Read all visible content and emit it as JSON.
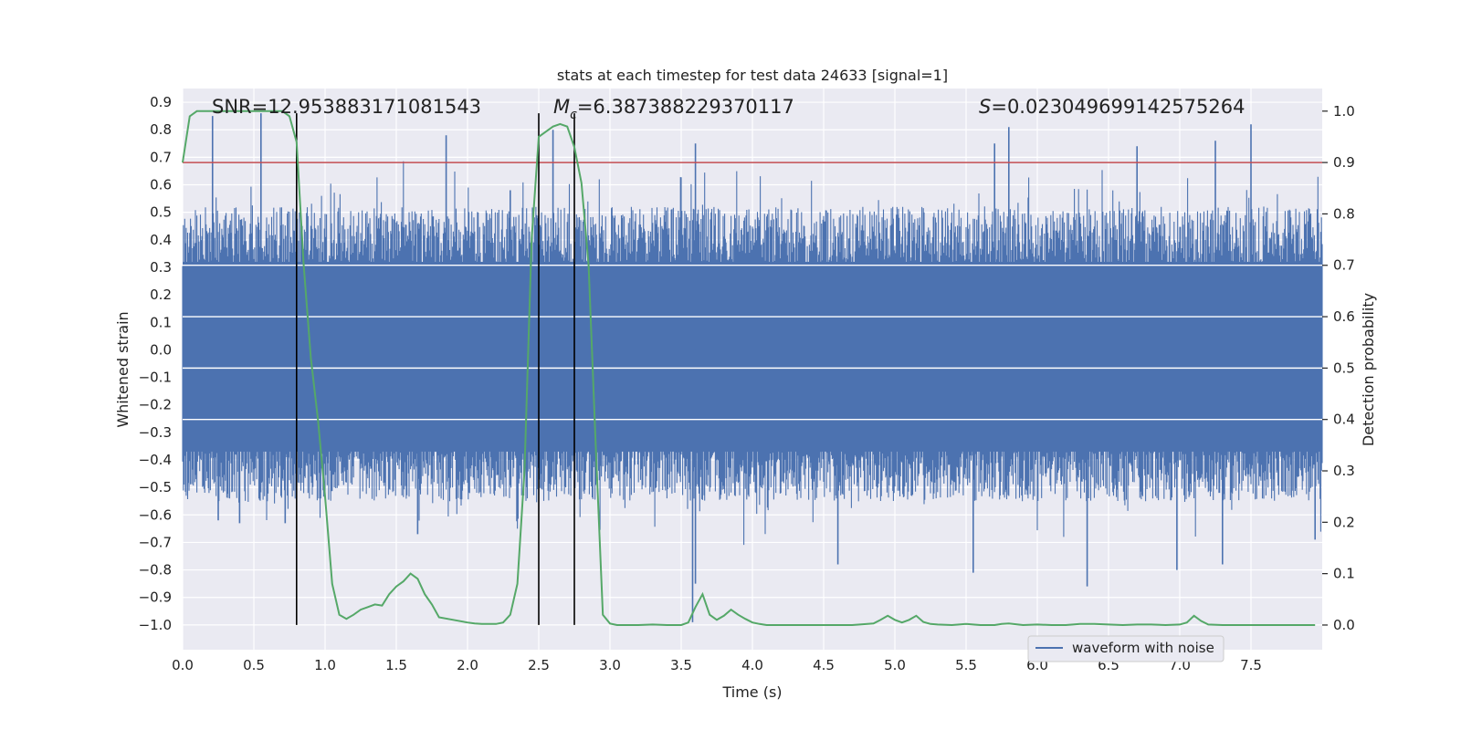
{
  "chart_data": {
    "type": "line",
    "title": "stats at each timestep for test data 24633 [signal=1]",
    "xlabel": "Time (s)",
    "ylabel_left": "Whitened strain",
    "ylabel_right": "Detection probability",
    "xlim": [
      0,
      8
    ],
    "ylim_left": [
      -1.09,
      0.95
    ],
    "ylim_right": [
      -0.048,
      1.044
    ],
    "x_ticks": [
      "0.0",
      "0.5",
      "1.0",
      "1.5",
      "2.0",
      "2.5",
      "3.0",
      "3.5",
      "4.0",
      "4.5",
      "5.0",
      "5.5",
      "6.0",
      "6.5",
      "7.0",
      "7.5"
    ],
    "y_ticks_left": [
      "0.9",
      "0.8",
      "0.7",
      "0.6",
      "0.5",
      "0.4",
      "0.3",
      "0.2",
      "0.1",
      "0.0",
      "-0.1",
      "-0.2",
      "-0.3",
      "-0.4",
      "-0.5",
      "-0.6",
      "-0.7",
      "-0.8",
      "-0.9",
      "-1.0"
    ],
    "y_ticks_right": [
      "1.0",
      "0.9",
      "0.8",
      "0.7",
      "0.6",
      "0.5",
      "0.4",
      "0.3",
      "0.2",
      "0.1",
      "0.0"
    ],
    "annotations": {
      "snr": "SNR=12.953883171081543",
      "mc_symbol": "M",
      "mc_sub": "c",
      "mc_value": "=6.387388229370117",
      "s_symbol": "S",
      "s_value": "=0.023049699142575264"
    },
    "threshold_line": {
      "value": 0.9,
      "axis": "right",
      "color": "#c44e52"
    },
    "vertical_lines": [
      0.8,
      2.5,
      2.75
    ],
    "strain_color": "#4c72b0",
    "probability_color": "#55a868",
    "legend": {
      "label": "waveform with noise",
      "placement": "lower-right"
    },
    "series": [
      {
        "name": "Detection probability",
        "axis": "right",
        "x": [
          0,
          0.05,
          0.1,
          0.15,
          0.2,
          0.3,
          0.4,
          0.5,
          0.6,
          0.7,
          0.75,
          0.8,
          0.85,
          0.9,
          0.95,
          1.0,
          1.05,
          1.1,
          1.15,
          1.2,
          1.25,
          1.3,
          1.35,
          1.4,
          1.45,
          1.5,
          1.55,
          1.6,
          1.65,
          1.7,
          1.75,
          1.8,
          1.9,
          2.0,
          2.05,
          2.1,
          2.15,
          2.2,
          2.25,
          2.3,
          2.35,
          2.4,
          2.45,
          2.5,
          2.55,
          2.6,
          2.65,
          2.7,
          2.75,
          2.8,
          2.85,
          2.9,
          2.95,
          3.0,
          3.05,
          3.1,
          3.2,
          3.3,
          3.4,
          3.5,
          3.55,
          3.6,
          3.65,
          3.7,
          3.75,
          3.8,
          3.85,
          3.9,
          3.95,
          4.0,
          4.05,
          4.1,
          4.2,
          4.3,
          4.5,
          4.7,
          4.85,
          4.9,
          4.95,
          5.0,
          5.05,
          5.1,
          5.15,
          5.2,
          5.25,
          5.3,
          5.4,
          5.5,
          5.6,
          5.7,
          5.75,
          5.8,
          5.9,
          6.0,
          6.1,
          6.2,
          6.3,
          6.35,
          6.4,
          6.5,
          6.6,
          6.7,
          6.8,
          6.9,
          7.0,
          7.05,
          7.1,
          7.15,
          7.2,
          7.3,
          7.4,
          7.5,
          7.6,
          7.7,
          7.8,
          7.95
        ],
        "values": [
          0.9,
          0.99,
          1.0,
          1.0,
          1.0,
          1.0,
          1.0,
          1.0,
          1.0,
          1.0,
          0.99,
          0.94,
          0.7,
          0.52,
          0.4,
          0.25,
          0.08,
          0.02,
          0.012,
          0.02,
          0.03,
          0.035,
          0.04,
          0.038,
          0.06,
          0.075,
          0.085,
          0.1,
          0.09,
          0.06,
          0.04,
          0.015,
          0.01,
          0.005,
          0.003,
          0.002,
          0.002,
          0.002,
          0.005,
          0.02,
          0.08,
          0.3,
          0.75,
          0.95,
          0.96,
          0.97,
          0.975,
          0.97,
          0.93,
          0.86,
          0.7,
          0.35,
          0.02,
          0.003,
          0.0,
          0.0,
          0.0,
          0.001,
          0.0,
          0.0,
          0.005,
          0.035,
          0.06,
          0.02,
          0.01,
          0.018,
          0.03,
          0.02,
          0.012,
          0.005,
          0.002,
          0.0,
          0.0,
          0.0,
          0.0,
          0.0,
          0.003,
          0.01,
          0.018,
          0.01,
          0.005,
          0.01,
          0.018,
          0.006,
          0.002,
          0.001,
          0.0,
          0.002,
          0.0,
          0.0,
          0.002,
          0.003,
          0.0,
          0.001,
          0.0,
          0.0,
          0.002,
          0.002,
          0.002,
          0.001,
          0.0,
          0.001,
          0.001,
          0.0,
          0.001,
          0.005,
          0.018,
          0.008,
          0.001,
          0.0,
          0.0,
          0.0,
          0.0,
          0.0,
          0.0,
          0.0
        ]
      },
      {
        "name": "waveform with noise",
        "axis": "left",
        "description_note": "dense noise trace",
        "envelope_top": 0.3,
        "envelope_bottom": -0.35,
        "peaks_top": [
          [
            0.05,
            0.35
          ],
          [
            0.21,
            0.85
          ],
          [
            0.55,
            0.86
          ],
          [
            1.85,
            0.78
          ],
          [
            2.3,
            0.58
          ],
          [
            2.6,
            0.8
          ],
          [
            3.6,
            0.75
          ],
          [
            5.7,
            0.75
          ],
          [
            5.8,
            0.81
          ],
          [
            6.7,
            0.74
          ],
          [
            7.25,
            0.76
          ],
          [
            7.5,
            0.82
          ]
        ],
        "peaks_bottom": [
          [
            0.25,
            -0.62
          ],
          [
            0.4,
            -0.63
          ],
          [
            0.72,
            -0.63
          ],
          [
            1.65,
            -0.67
          ],
          [
            3.58,
            -0.99
          ],
          [
            3.6,
            -0.85
          ],
          [
            4.6,
            -0.78
          ],
          [
            5.55,
            -0.81
          ],
          [
            6.35,
            -0.86
          ],
          [
            6.98,
            -0.8
          ],
          [
            7.3,
            -0.78
          ],
          [
            7.95,
            -0.69
          ]
        ]
      }
    ]
  }
}
